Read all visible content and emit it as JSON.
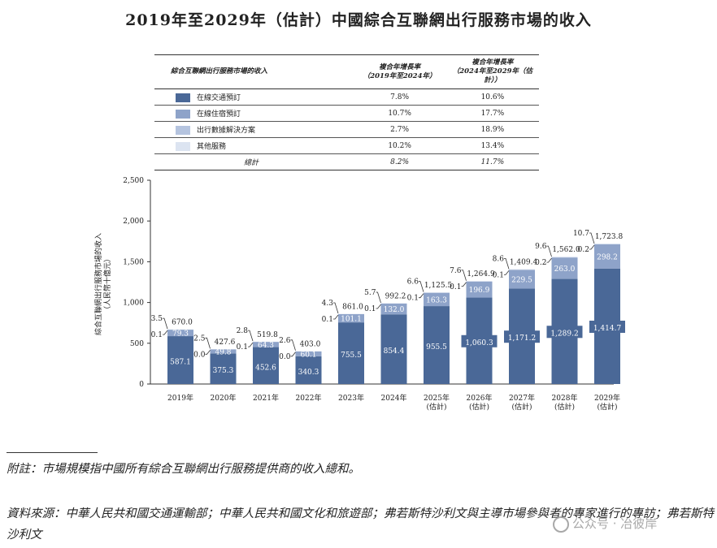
{
  "title": "2019年至2029年（估計）中國綜合互聯網出行服務市場的收入",
  "legend_table": {
    "headers": [
      "綜合互聯網出行服務市場的收入",
      "複合年增長率\n（2019年至2024年）",
      "複合年增長率\n（2024年至2029年（估計））"
    ],
    "rows": [
      {
        "label": "在線交通預訂",
        "color": "#4a6897",
        "cagr1": "7.8%",
        "cagr2": "10.6%"
      },
      {
        "label": "在線住宿預訂",
        "color": "#8ea3c9",
        "cagr1": "10.7%",
        "cagr2": "17.7%"
      },
      {
        "label": "出行數據解決方案",
        "color": "#b5c4df",
        "cagr1": "2.7%",
        "cagr2": "18.9%"
      },
      {
        "label": "其他服務",
        "color": "#dce4f1",
        "cagr1": "10.2%",
        "cagr2": "13.4%"
      }
    ],
    "total": {
      "label": "總計",
      "cagr1": "8.2%",
      "cagr2": "11.7%"
    }
  },
  "chart_data": {
    "type": "bar",
    "stacked": true,
    "ylabel": "綜合互聯網出行服務市場的收入（人民幣十億元）",
    "ylim": [
      0,
      2500
    ],
    "yticks": [
      "0",
      "500",
      "1,000",
      "1,500",
      "2,000",
      "2,500"
    ],
    "categories": [
      "2019年",
      "2020年",
      "2021年",
      "2022年",
      "2023年",
      "2024年",
      "2025年\n(估計)",
      "2026年\n(估計)",
      "2027年\n(估計)",
      "2028年\n(估計)",
      "2029年\n(估計)"
    ],
    "series": [
      {
        "name": "在線交通預訂",
        "color": "#4a6897",
        "values": [
          587.1,
          375.3,
          452.6,
          340.3,
          755.5,
          854.4,
          955.5,
          1060.3,
          1171.2,
          1289.2,
          1414.7
        ],
        "labels": [
          "587.1",
          "375.3",
          "452.6",
          "340.3",
          "755.5",
          "854.4",
          "955.5",
          "1,060.3",
          "1,171.2",
          "1,289.2",
          "1,414.7"
        ]
      },
      {
        "name": "在線住宿預訂",
        "color": "#8ea3c9",
        "values": [
          79.3,
          49.8,
          64.3,
          60.1,
          101.1,
          132.0,
          163.3,
          196.9,
          229.5,
          263.0,
          298.2
        ],
        "labels": [
          "79.3",
          "49.8",
          "64.3",
          "60.1",
          "101.1",
          "132.0",
          "163.3",
          "196.9",
          "229.5",
          "263.0",
          "298.2"
        ]
      },
      {
        "name": "出行數據解決方案",
        "color": "#b5c4df",
        "values": [
          0.1,
          0.0,
          0.1,
          0.0,
          0.1,
          0.1,
          0.1,
          0.1,
          0.1,
          0.2,
          0.2
        ],
        "labels": [
          "0.1",
          "0.0",
          "0.1",
          "0.0",
          "0.1",
          "0.1",
          "0.1",
          "0.1",
          "0.1",
          "0.2",
          "0.2"
        ]
      },
      {
        "name": "其他服務",
        "color": "#dce4f1",
        "values": [
          3.5,
          2.5,
          2.8,
          2.6,
          4.3,
          5.7,
          6.6,
          7.6,
          8.6,
          9.6,
          10.7
        ],
        "labels": [
          "3.5",
          "2.5",
          "2.8",
          "2.6",
          "4.3",
          "5.7",
          "6.6",
          "7.6",
          "8.6",
          "9.6",
          "10.7"
        ]
      }
    ],
    "totals": [
      "670.0",
      "427.6",
      "519.8",
      "403.0",
      "861.0",
      "992.2",
      "1,125.5",
      "1,264.9",
      "1,409.4",
      "1,562.0",
      "1,723.8"
    ]
  },
  "note": "附註：市場規模指中國所有綜合互聯網出行服務提供商的收入總和。",
  "source": "資料來源：中華人民共和國交通運輸部；中華人民共和國文化和旅遊部；弗若斯特沙利文與主導市場參與者的專家進行的專訪；弗若斯特沙利文",
  "watermark": "公众号 · 冶彼岸"
}
